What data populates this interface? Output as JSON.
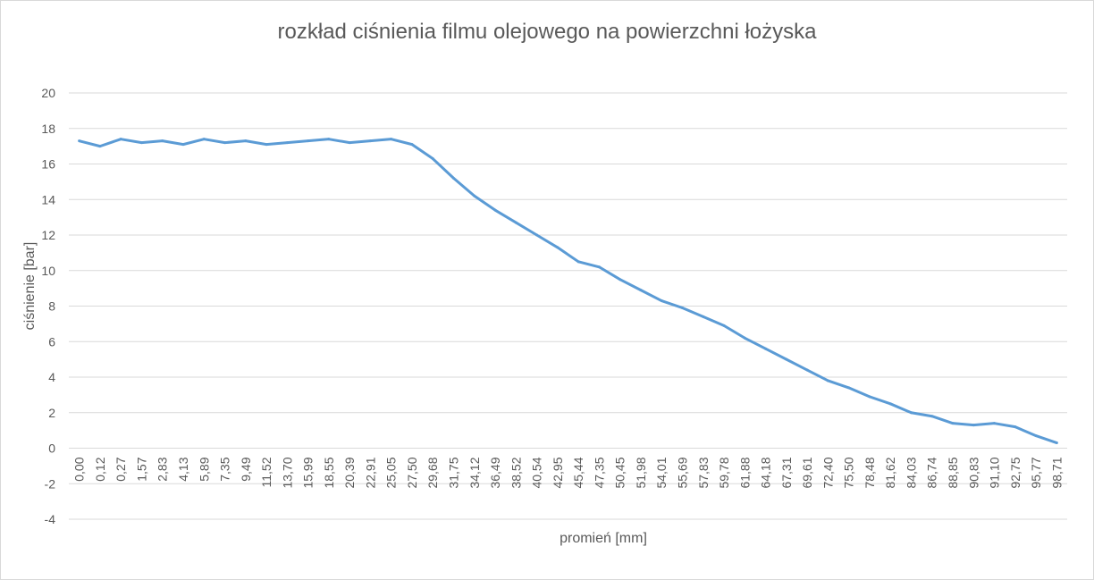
{
  "chart_data": {
    "type": "line",
    "title": "rozkład ciśnienia filmu olejowego na powierzchni łożyska",
    "xlabel": "promień [mm]",
    "ylabel": "ciśnienie [bar]",
    "ylim": [
      -4,
      20
    ],
    "yticks": [
      "-4",
      "-2",
      "0",
      "2",
      "4",
      "6",
      "8",
      "10",
      "12",
      "14",
      "16",
      "18",
      "20"
    ],
    "grid": "horizontal",
    "legend": "none",
    "color": "#5b9bd5",
    "categories": [
      "0,00",
      "0,12",
      "0,27",
      "1,57",
      "2,83",
      "4,13",
      "5,89",
      "7,35",
      "9,49",
      "11,52",
      "13,70",
      "15,99",
      "18,55",
      "20,39",
      "22,91",
      "25,05",
      "27,50",
      "29,68",
      "31,75",
      "34,12",
      "36,49",
      "38,52",
      "40,54",
      "42,95",
      "45,44",
      "47,35",
      "50,45",
      "51,98",
      "54,01",
      "55,69",
      "57,83",
      "59,78",
      "61,88",
      "64,18",
      "67,31",
      "69,61",
      "72,40",
      "75,50",
      "78,48",
      "81,62",
      "84,03",
      "86,74",
      "88,85",
      "90,83",
      "91,10",
      "92,75",
      "95,77",
      "98,71"
    ],
    "series": [
      {
        "values": [
          17.3,
          17.0,
          17.4,
          17.2,
          17.3,
          17.1,
          17.4,
          17.2,
          17.3,
          17.1,
          17.2,
          17.3,
          17.4,
          17.2,
          17.3,
          17.4,
          17.1,
          16.3,
          15.2,
          14.2,
          13.4,
          12.7,
          12.0,
          11.3,
          10.5,
          10.2,
          9.5,
          8.9,
          8.3,
          7.9,
          7.4,
          6.9,
          6.2,
          5.6,
          5.0,
          4.4,
          3.8,
          3.4,
          2.9,
          2.5,
          2.0,
          1.8,
          1.4,
          1.3,
          1.4,
          1.2,
          0.7,
          0.3
        ]
      }
    ]
  }
}
